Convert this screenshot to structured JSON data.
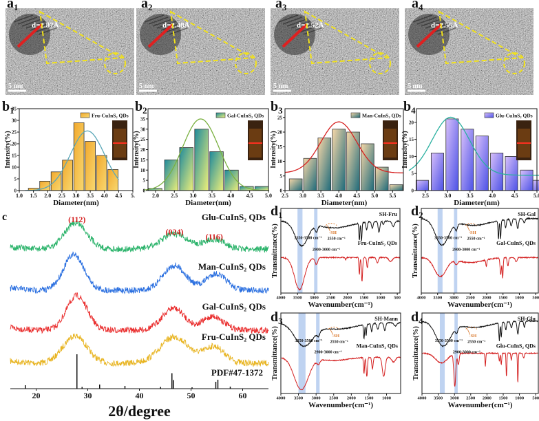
{
  "tem": [
    {
      "label": "a",
      "sub": "1",
      "d": "d=2.87Å",
      "scale": "5 nm"
    },
    {
      "label": "a",
      "sub": "2",
      "d": "d=2.48Å",
      "scale": "5 nm"
    },
    {
      "label": "a",
      "sub": "3",
      "d": "d=2.52Å",
      "scale": "5 nm"
    },
    {
      "label": "a",
      "sub": "4",
      "d": "d=2.55Å",
      "scale": "5 nm"
    }
  ],
  "colors": {
    "tem_overlay": "#f2e21a",
    "lattice": "#e02020",
    "miller": "#d42020",
    "sh": "#d9772a",
    "band_shade": "#aac4ec"
  },
  "chart_data": [
    {
      "type": "bar",
      "panel": "b",
      "sub": "1",
      "legend": "Fru-CuInS₂ QDs",
      "xlabel": "Diameter(nm)",
      "ylabel": "Intensity(%)",
      "xlim": [
        1.0,
        5.0
      ],
      "ylim": [
        0,
        35
      ],
      "xticks": [
        "1.0",
        "1.5",
        "2.0",
        "2.5",
        "3.0",
        "3.5",
        "4.0",
        "4.5",
        "5."
      ],
      "yticks": [
        "0",
        "5",
        "10",
        "15",
        "20",
        "25",
        "30",
        "35"
      ],
      "bins": [
        1.5,
        1.9,
        2.3,
        2.7,
        3.1,
        3.5,
        3.9,
        4.3
      ],
      "values": [
        1,
        4,
        8,
        13,
        29,
        21,
        15,
        9
      ],
      "bin_width": 0.36,
      "fit": {
        "type": "gaussian",
        "center": 3.4,
        "sigma": 0.6,
        "amplitude": 25.5,
        "offset": 0
      },
      "colors": {
        "bar_from": "#f2a92e",
        "bar_to": "#f8d870",
        "fit": "#5aa7b8"
      }
    },
    {
      "type": "bar",
      "panel": "b",
      "sub": "2",
      "legend": "Gal-CuInS₂ QDs",
      "xlabel": "Diameter(nm)",
      "ylabel": "Intensity(%)",
      "xlim": [
        1.8,
        5.0
      ],
      "ylim": [
        0,
        40
      ],
      "xticks": [
        "2.0",
        "2.5",
        "3.0",
        "3.5",
        "4.0",
        "4.5",
        "5.0"
      ],
      "yticks": [
        "0",
        "5",
        "10",
        "15",
        "20",
        "25",
        "30",
        "35"
      ],
      "bins": [
        1.99,
        2.42,
        2.82,
        3.22,
        3.62,
        4.02,
        4.42,
        4.82
      ],
      "values": [
        1,
        15,
        21,
        30,
        19,
        10,
        2,
        2
      ],
      "bin_width": 0.36,
      "fit": {
        "type": "gaussian",
        "center": 3.2,
        "sigma": 0.48,
        "amplitude": 35,
        "offset": 0
      },
      "colors": {
        "bar_from": "#1e8a9c",
        "bar_to": "#eef07a",
        "fit": "#7ab040"
      }
    },
    {
      "type": "bar",
      "panel": "b",
      "sub": "3",
      "legend": "Man-CuInS₂ QDs",
      "xlabel": "Diameter(nm)",
      "ylabel": "Intensity(%)",
      "xlim": [
        2.5,
        5.8
      ],
      "ylim": [
        0,
        28
      ],
      "xticks": [
        "2.5",
        "3.0",
        "3.5",
        "4.0",
        "4.5",
        "5.0",
        "5.5"
      ],
      "yticks": [
        "0",
        "5",
        "10",
        "15",
        "20",
        "25"
      ],
      "bins": [
        2.8,
        3.2,
        3.6,
        4.0,
        4.4,
        4.8,
        5.2,
        5.6
      ],
      "values": [
        4,
        11,
        18,
        21,
        20,
        16,
        8,
        2
      ],
      "bin_width": 0.36,
      "fit": {
        "type": "gaussian",
        "center": 4.0,
        "sigma": 0.5,
        "amplitude": 17.5,
        "offset": 6
      },
      "colors": {
        "bar_from": "#f8d8a8",
        "bar_to": "#1d6a7a",
        "fit": "#d62020"
      }
    },
    {
      "type": "bar",
      "panel": "b",
      "sub": "4",
      "legend": "Glu-CuInS₂ QDs",
      "xlabel": "Diameter(nm)",
      "ylabel": "Intensity(%)",
      "xlim": [
        2.3,
        5.0
      ],
      "ylim": [
        0,
        24
      ],
      "xticks": [
        "2.5",
        "3.0",
        "3.5",
        "4.0",
        "4.5",
        "5.0"
      ],
      "yticks": [
        "0",
        "5",
        "10",
        "15",
        "20"
      ],
      "bins": [
        2.43,
        2.77,
        3.1,
        3.44,
        3.77,
        4.1,
        4.43,
        4.77,
        5.05
      ],
      "values": [
        3,
        11,
        21,
        18,
        16,
        11,
        10,
        6,
        3
      ],
      "bin_width": 0.28,
      "fit": {
        "type": "gaussian",
        "center": 3.07,
        "sigma": 0.42,
        "amplitude": 17,
        "offset": 4.5
      },
      "colors": {
        "bar_from": "#d8c0fa",
        "bar_to": "#4c52e6",
        "fit": "#2ab0a0"
      }
    },
    {
      "type": "line",
      "panel": "c",
      "xlabel": "2θ/degree",
      "xlim": [
        15,
        65
      ],
      "xticks": [
        "20",
        "30",
        "40",
        "50",
        "60"
      ],
      "series": [
        {
          "name": "Fru-CuInS₂ QDs",
          "color": "#e8b420",
          "peaks": [
            [
              27.5,
              1.0,
              2.3
            ],
            [
              46.8,
              0.95,
              2.8
            ],
            [
              54.5,
              0.6,
              2.0
            ]
          ]
        },
        {
          "name": "Gal-CuInS₂ QDs",
          "color": "#ea3030",
          "peaks": [
            [
              27.9,
              1.25,
              2.0
            ],
            [
              46.6,
              0.8,
              2.2
            ],
            [
              54.3,
              0.5,
              2.0
            ]
          ]
        },
        {
          "name": "Man-CuInS₂ QDs",
          "color": "#2a6fe0",
          "peaks": [
            [
              27.3,
              1.3,
              2.0
            ],
            [
              46.8,
              0.9,
              2.2
            ],
            [
              54.8,
              0.6,
              2.0
            ]
          ]
        },
        {
          "name": "Glu-CuInS₂ QDs",
          "color": "#2ab36a",
          "peaks": [
            [
              27.7,
              0.95,
              2.2
            ],
            [
              46.8,
              0.55,
              2.5
            ],
            [
              54.5,
              0.35,
              2.0
            ]
          ]
        }
      ],
      "miller": [
        {
          "hkl": "(112)",
          "x": 27.9
        },
        {
          "hkl": "(024)",
          "x": 46.8
        },
        {
          "hkl": "(116)",
          "x": 54.5
        }
      ],
      "reference": {
        "name": "PDF#47-1372",
        "sticks": [
          [
            17.9,
            0.1
          ],
          [
            27.9,
            1.0
          ],
          [
            28.9,
            0.05
          ],
          [
            32.3,
            0.12
          ],
          [
            37.2,
            0.08
          ],
          [
            44.1,
            0.05
          ],
          [
            46.3,
            0.45
          ],
          [
            46.6,
            0.25
          ],
          [
            50.2,
            0.04
          ],
          [
            54.8,
            0.2
          ],
          [
            55.2,
            0.26
          ],
          [
            57.6,
            0.06
          ]
        ]
      }
    },
    {
      "type": "line",
      "panel": "d",
      "sub": "1",
      "xlabel": "Wavenumber(cm⁻¹)",
      "ylabel": "Transmittance(%)",
      "xlim": [
        4000,
        420
      ],
      "xticks": [
        "4000",
        "3500",
        "3000",
        "2500",
        "2000",
        "1500",
        "1000",
        "500"
      ],
      "shaded": [
        [
          3350,
          3500
        ],
        [
          2900,
          3000
        ]
      ],
      "band_labels": [
        "3350-3500 cm⁻¹",
        "2900-3000 cm⁻¹",
        "-SH",
        "2550 cm⁻¹"
      ],
      "series": [
        {
          "name": "SH-Fru",
          "color": "#111111",
          "baseline": 85,
          "bands": [
            [
              3380,
              28,
              190
            ],
            [
              2930,
              7,
              35
            ],
            [
              2400,
              8,
              500
            ],
            [
              1640,
              20,
              14
            ],
            [
              1575,
              22,
              14
            ],
            [
              1420,
              9,
              20
            ],
            [
              1250,
              8,
              25
            ],
            [
              1050,
              13,
              25
            ],
            [
              920,
              4,
              20
            ],
            [
              620,
              6,
              40
            ]
          ]
        },
        {
          "name": "Fru-CuInS₂ QDs",
          "color": "#d42020",
          "baseline": 42,
          "bands": [
            [
              3440,
              38,
              150
            ],
            [
              2930,
              8,
              40
            ],
            [
              2050,
              3,
              15
            ],
            [
              1640,
              20,
              14
            ],
            [
              1560,
              28,
              18
            ],
            [
              1400,
              12,
              20
            ],
            [
              1100,
              6,
              30
            ],
            [
              700,
              5,
              50
            ]
          ]
        }
      ]
    },
    {
      "type": "line",
      "panel": "d",
      "sub": "2",
      "xlabel": "Wavenumber(cm⁻¹)",
      "ylabel": "Transmittance(%)",
      "xlim": [
        4000,
        420
      ],
      "xticks": [
        "4000",
        "3500",
        "3000",
        "2500",
        "2000",
        "1500",
        "1000",
        "500"
      ],
      "shaded": [
        [
          3350,
          3500
        ],
        [
          2900,
          3000
        ]
      ],
      "band_labels": [
        "3350-3500 cm⁻¹",
        "2900-3000 cm⁻¹",
        "-SH",
        "2550 cm⁻¹"
      ],
      "series": [
        {
          "name": "SH-Gal",
          "color": "#111111",
          "baseline": 88,
          "bands": [
            [
              3370,
              30,
              200
            ],
            [
              2930,
              7,
              35
            ],
            [
              2400,
              8,
              500
            ],
            [
              1640,
              22,
              14
            ],
            [
              1575,
              22,
              14
            ],
            [
              1420,
              10,
              20
            ],
            [
              1250,
              8,
              25
            ],
            [
              1050,
              12,
              25
            ],
            [
              850,
              5,
              30
            ]
          ]
        },
        {
          "name": "Gal-CuInS₂ QDs",
          "color": "#d42020",
          "baseline": 42,
          "bands": [
            [
              3420,
              22,
              180
            ],
            [
              2930,
              5,
              40
            ],
            [
              2500,
              6,
              400
            ],
            [
              2010,
              8,
              15
            ],
            [
              1570,
              20,
              20
            ],
            [
              1510,
              24,
              15
            ],
            [
              1350,
              10,
              20
            ],
            [
              1100,
              5,
              30
            ]
          ]
        }
      ]
    },
    {
      "type": "line",
      "panel": "d",
      "sub": "3",
      "xlabel": "Wavenumber(cm⁻¹)",
      "ylabel": "Transmittance(%)",
      "xlim": [
        4000,
        600
      ],
      "xticks": [
        "4000",
        "3500",
        "3000",
        "2500",
        "2000",
        "1500",
        "1000"
      ],
      "shaded": [
        [
          3300,
          3500
        ],
        [
          2900,
          3000
        ]
      ],
      "band_labels": [
        "3350-3500 cm⁻¹",
        "2900-3000 cm⁻¹",
        "-SH",
        "2550 cm⁻¹"
      ],
      "series": [
        {
          "name": "SH-Mann",
          "color": "#111111",
          "baseline": 88,
          "bands": [
            [
              3350,
              28,
              260
            ],
            [
              2930,
              5,
              35
            ],
            [
              2400,
              8,
              500
            ],
            [
              1640,
              18,
              14
            ],
            [
              1580,
              14,
              14
            ],
            [
              1420,
              10,
              20
            ],
            [
              1250,
              8,
              25
            ],
            [
              1050,
              10,
              25
            ],
            [
              750,
              4,
              40
            ]
          ]
        },
        {
          "name": "Man-CuInS₂ QDs",
          "color": "#d42020",
          "baseline": 45,
          "bands": [
            [
              3420,
              40,
              200
            ],
            [
              2930,
              5,
              40
            ],
            [
              2500,
              4,
              400
            ],
            [
              1640,
              20,
              14
            ],
            [
              1560,
              24,
              18
            ],
            [
              1400,
              14,
              20
            ],
            [
              1080,
              24,
              40
            ],
            [
              800,
              6,
              50
            ]
          ]
        }
      ]
    },
    {
      "type": "line",
      "panel": "d",
      "sub": "4",
      "xlabel": "Wavenumber(cm⁻¹)",
      "ylabel": "Transmittance(%)",
      "xlim": [
        4000,
        420
      ],
      "xticks": [
        "4000",
        "3500",
        "3000",
        "2500",
        "2000",
        "1500",
        "1000",
        "500"
      ],
      "shaded": [
        [
          3300,
          3450
        ],
        [
          2900,
          3000
        ]
      ],
      "band_labels": [
        "3350-3500 cm⁻¹",
        "2900-3000 cm⁻¹",
        "-SH",
        "2550 cm⁻¹"
      ],
      "series": [
        {
          "name": "SH-Glu",
          "color": "#111111",
          "baseline": 90,
          "bands": [
            [
              3350,
              30,
              220
            ],
            [
              2930,
              6,
              35
            ],
            [
              2400,
              8,
              500
            ],
            [
              1620,
              22,
              14
            ],
            [
              1560,
              18,
              14
            ],
            [
              1420,
              10,
              20
            ],
            [
              1250,
              8,
              25
            ],
            [
              1050,
              16,
              25
            ],
            [
              850,
              8,
              20
            ]
          ]
        },
        {
          "name": "Glu-CuInS₂ QDs",
          "color": "#d42020",
          "baseline": 50,
          "bands": [
            [
              3400,
              12,
              180
            ],
            [
              2990,
              40,
              30
            ],
            [
              2880,
              14,
              25
            ],
            [
              2050,
              16,
              12
            ],
            [
              1620,
              10,
              14
            ],
            [
              1560,
              14,
              14
            ],
            [
              1400,
              30,
              12
            ],
            [
              1250,
              8,
              15
            ],
            [
              1050,
              38,
              12
            ],
            [
              870,
              6,
              20
            ]
          ]
        }
      ]
    }
  ]
}
